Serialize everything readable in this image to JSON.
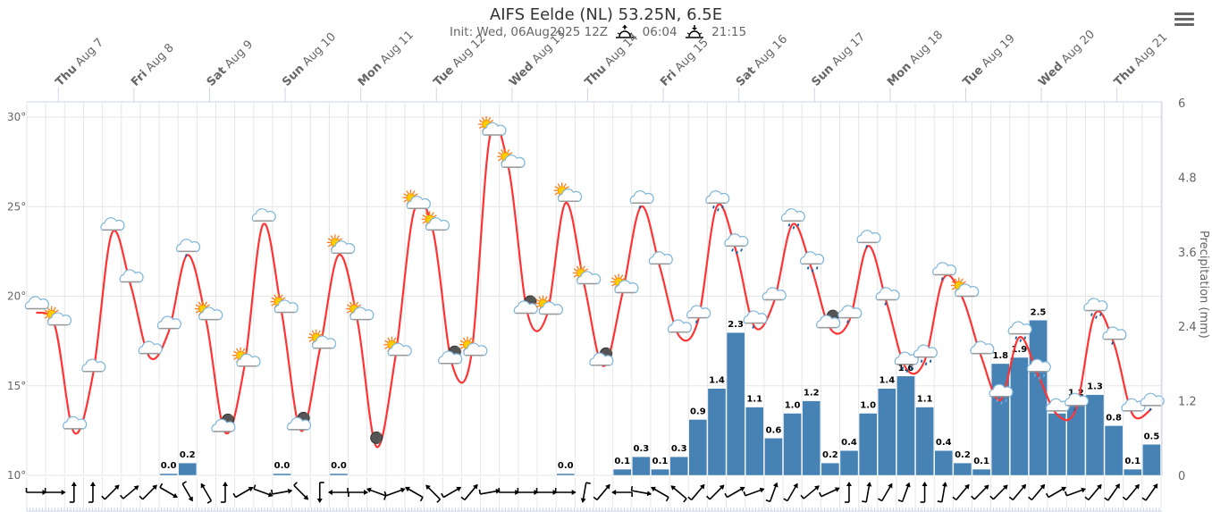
{
  "title": "AIFS Eelde (NL) 53.25N, 6.5E",
  "subtitle": {
    "init": "Init: Wed, 06Aug2025 12Z",
    "sunrise": "06:04",
    "sunset": "21:15"
  },
  "menu_icon": "hamburger-menu-icon",
  "chart_data": {
    "type": "meteogram",
    "step_hours": 6,
    "first_step": "Wed Aug 6 14:00",
    "day_labels": [
      {
        "dow": "Thu",
        "date": "Aug 7"
      },
      {
        "dow": "Fri",
        "date": "Aug 8"
      },
      {
        "dow": "Sat",
        "date": "Aug 9"
      },
      {
        "dow": "Sun",
        "date": "Aug 10"
      },
      {
        "dow": "Mon",
        "date": "Aug 11"
      },
      {
        "dow": "Tue",
        "date": "Aug 12"
      },
      {
        "dow": "Wed",
        "date": "Aug 13"
      },
      {
        "dow": "Thu",
        "date": "Aug 14"
      },
      {
        "dow": "Fri",
        "date": "Aug 15"
      },
      {
        "dow": "Sat",
        "date": "Aug 16"
      },
      {
        "dow": "Sun",
        "date": "Aug 17"
      },
      {
        "dow": "Mon",
        "date": "Aug 18"
      },
      {
        "dow": "Tue",
        "date": "Aug 19"
      },
      {
        "dow": "Wed",
        "date": "Aug 20"
      },
      {
        "dow": "Thu",
        "date": "Aug 21"
      }
    ],
    "temperature": {
      "unit": "°C",
      "color": "#ff3333",
      "ylim": [
        10,
        30
      ],
      "ticks": [
        "10°",
        "15°",
        "20°",
        "25°",
        "30°"
      ],
      "values": [
        19.1,
        18.3,
        12.4,
        15.6,
        23.5,
        20.6,
        16.6,
        18.0,
        22.3,
        18.6,
        12.4,
        16.0,
        24.0,
        19.0,
        12.5,
        17.0,
        22.3,
        18.6,
        11.6,
        16.6,
        24.8,
        23.6,
        16.2,
        16.6,
        28.9,
        27.1,
        19.0,
        18.9,
        25.2,
        20.6,
        16.1,
        20.1,
        25.0,
        21.6,
        17.8,
        18.6,
        25.0,
        22.6,
        18.3,
        19.6,
        24.0,
        21.6,
        18.2,
        18.6,
        22.8,
        19.6,
        16.0,
        16.4,
        21.0,
        19.9,
        16.6,
        14.2,
        17.7,
        15.6,
        13.4,
        13.7,
        19.0,
        17.4,
        13.4,
        13.7
      ]
    },
    "precipitation": {
      "axis_title": "Precipitation (mm)",
      "color": "#4682b4",
      "ylim": [
        0,
        6
      ],
      "ticks": [
        "0",
        "1.2",
        "2.4",
        "3.6",
        "4.8",
        "6"
      ],
      "values": [
        null,
        null,
        null,
        null,
        null,
        null,
        null,
        0.0,
        0.2,
        null,
        null,
        null,
        null,
        0.0,
        null,
        null,
        0.0,
        null,
        null,
        null,
        null,
        null,
        null,
        null,
        null,
        null,
        null,
        null,
        0.0,
        null,
        null,
        0.1,
        0.3,
        0.1,
        0.3,
        0.9,
        1.4,
        2.3,
        1.1,
        0.6,
        1.0,
        1.2,
        0.2,
        0.4,
        1.0,
        1.4,
        1.6,
        1.1,
        0.4,
        0.2,
        0.1,
        1.8,
        1.9,
        2.5,
        1.0,
        1.2,
        1.3,
        0.8,
        0.1,
        0.5
      ]
    },
    "weather_symbols": [
      "cloud",
      "sun-cloud",
      "cloud",
      "cloud",
      "cloud",
      "cloud",
      "cloud",
      "cloud",
      "light-rain",
      "sun-cloud",
      "moon-cloud",
      "sun-cloud",
      "cloud",
      "sun-cloud",
      "moon-cloud",
      "sun-cloud",
      "sun-cloud",
      "sun-cloud",
      "moon",
      "sun-cloud",
      "sun-cloud",
      "sun-cloud",
      "moon-cloud",
      "sun-cloud",
      "sun-cloud",
      "sun-cloud",
      "moon-cloud",
      "sun-cloud",
      "sun-cloud",
      "sun-cloud",
      "moon-cloud",
      "sun-cloud",
      "light-rain",
      "cloud",
      "cloud",
      "light-rain",
      "rain",
      "rain",
      "light-rain",
      "cloud",
      "rain",
      "rain",
      "moon-cloud",
      "light-rain",
      "light-rain",
      "light-rain",
      "rain",
      "rain",
      "light-rain",
      "sun-cloud",
      "cloud",
      "sleet",
      "rain",
      "sleet",
      "cloud",
      "light-rain",
      "rain",
      "light-rain",
      "cloud",
      "light-rain"
    ],
    "wind_arrow_deg": [
      90,
      90,
      0,
      0,
      45,
      50,
      45,
      120,
      150,
      330,
      0,
      60,
      110,
      80,
      135,
      180,
      270,
      90,
      290,
      70,
      300,
      315,
      60,
      40,
      80,
      90,
      90,
      90,
      90,
      190,
      40,
      270,
      100,
      300,
      310,
      40,
      45,
      60,
      70,
      20,
      30,
      50,
      65,
      0,
      10,
      30,
      20,
      0,
      10,
      40,
      45,
      45,
      40,
      40,
      60,
      70,
      40,
      35,
      40,
      35
    ]
  }
}
